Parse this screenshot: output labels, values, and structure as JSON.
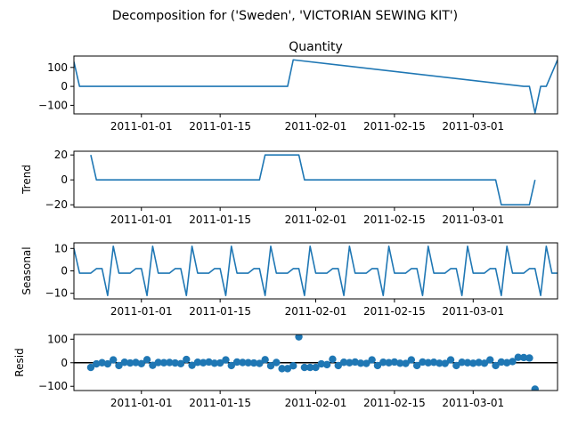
{
  "figure": {
    "suptitle": "Decomposition for ('Sweden', 'VICTORIAN SEWING KIT')"
  },
  "colors": {
    "series": "#1f77b4",
    "zero_line": "#000000"
  },
  "chart_data": [
    {
      "type": "line",
      "title": "Quantity",
      "ylabel": "",
      "xlim": [
        "2010-12-20",
        "2011-03-16"
      ],
      "ylim": [
        -145,
        160
      ],
      "yticks": [
        100,
        0,
        -100
      ],
      "ytick_labels": [
        "100",
        "0",
        "−100"
      ],
      "xticks": [
        "2011-01-01",
        "2011-01-15",
        "2011-02-01",
        "2011-02-15",
        "2011-03-01"
      ],
      "xtick_labels": [
        "2011-01-01",
        "2011-01-15",
        "2011-02-01",
        "2011-02-15",
        "2011-03-01"
      ],
      "series": [
        {
          "x": [
            "2010-12-20",
            "2010-12-21",
            "2011-01-26",
            "2011-01-27",
            "2011-01-28",
            "2011-03-10",
            "2011-03-11",
            "2011-03-12",
            "2011-03-13",
            "2011-03-14",
            "2011-03-16"
          ],
          "values": [
            130,
            0,
            0,
            0,
            140,
            0,
            0,
            -140,
            0,
            0,
            140
          ]
        }
      ]
    },
    {
      "type": "line",
      "title": "",
      "ylabel": "Trend",
      "xlim": [
        "2010-12-20",
        "2011-03-16"
      ],
      "ylim": [
        -22,
        23
      ],
      "yticks": [
        20,
        0,
        -20
      ],
      "ytick_labels": [
        "20",
        "0",
        "−20"
      ],
      "xticks": [
        "2011-01-01",
        "2011-01-15",
        "2011-02-01",
        "2011-02-15",
        "2011-03-01"
      ],
      "xtick_labels": [
        "2011-01-01",
        "2011-01-15",
        "2011-02-01",
        "2011-02-15",
        "2011-03-01"
      ],
      "series": [
        {
          "x": [
            "2010-12-23",
            "2010-12-24",
            "2011-01-22",
            "2011-01-23",
            "2011-01-29",
            "2011-01-30",
            "2011-03-05",
            "2011-03-06",
            "2011-03-11",
            "2011-03-12"
          ],
          "values": [
            20,
            0,
            0,
            20,
            20,
            0,
            0,
            -20,
            -20,
            0
          ]
        }
      ]
    },
    {
      "type": "line",
      "title": "",
      "ylabel": "Seasonal",
      "xlim": [
        "2010-12-20",
        "2011-03-16"
      ],
      "ylim": [
        -12.5,
        12.5
      ],
      "yticks": [
        10,
        0,
        -10
      ],
      "ytick_labels": [
        "10",
        "0",
        "−10"
      ],
      "xticks": [
        "2011-01-01",
        "2011-01-15",
        "2011-02-01",
        "2011-02-15",
        "2011-03-01"
      ],
      "xtick_labels": [
        "2011-01-01",
        "2011-01-15",
        "2011-02-01",
        "2011-02-15",
        "2011-03-01"
      ],
      "series": [
        {
          "x": [
            "2010-12-20",
            "2010-12-21",
            "2010-12-22",
            "2010-12-23",
            "2010-12-24",
            "2010-12-25",
            "2010-12-26",
            "2010-12-27",
            "2010-12-28",
            "2010-12-29",
            "2010-12-30",
            "2010-12-31",
            "2011-01-01",
            "2011-01-02",
            "2011-01-03",
            "2011-01-04",
            "2011-01-05",
            "2011-01-06",
            "2011-01-07",
            "2011-01-08",
            "2011-01-09",
            "2011-01-10",
            "2011-01-11",
            "2011-01-12",
            "2011-01-13",
            "2011-01-14",
            "2011-01-15",
            "2011-01-16",
            "2011-01-17",
            "2011-01-18",
            "2011-01-19",
            "2011-01-20",
            "2011-01-21",
            "2011-01-22",
            "2011-01-23",
            "2011-01-24",
            "2011-01-25",
            "2011-01-26",
            "2011-01-27",
            "2011-01-28",
            "2011-01-29",
            "2011-01-30",
            "2011-01-31",
            "2011-02-01",
            "2011-02-02",
            "2011-02-03",
            "2011-02-04",
            "2011-02-05",
            "2011-02-06",
            "2011-02-07",
            "2011-02-08",
            "2011-02-09",
            "2011-02-10",
            "2011-02-11",
            "2011-02-12",
            "2011-02-13",
            "2011-02-14",
            "2011-02-15",
            "2011-02-16",
            "2011-02-17",
            "2011-02-18",
            "2011-02-19",
            "2011-02-20",
            "2011-02-21",
            "2011-02-22",
            "2011-02-23",
            "2011-02-24",
            "2011-02-25",
            "2011-02-26",
            "2011-02-27",
            "2011-02-28",
            "2011-03-01",
            "2011-03-02",
            "2011-03-03",
            "2011-03-04",
            "2011-03-05",
            "2011-03-06",
            "2011-03-07",
            "2011-03-08",
            "2011-03-09",
            "2011-03-10",
            "2011-03-11",
            "2011-03-12",
            "2011-03-13",
            "2011-03-14",
            "2011-03-15",
            "2011-03-16"
          ],
          "values": [
            10,
            -1,
            -1,
            -1,
            1,
            1,
            -11,
            11,
            -1,
            -1,
            -1,
            1,
            1,
            -11,
            11,
            -1,
            -1,
            -1,
            1,
            1,
            -11,
            11,
            -1,
            -1,
            -1,
            1,
            1,
            -11,
            11,
            -1,
            -1,
            -1,
            1,
            1,
            -11,
            11,
            -1,
            -1,
            -1,
            1,
            1,
            -11,
            11,
            -1,
            -1,
            -1,
            1,
            1,
            -11,
            11,
            -1,
            -1,
            -1,
            1,
            1,
            -11,
            11,
            -1,
            -1,
            -1,
            1,
            1,
            -11,
            11,
            -1,
            -1,
            -1,
            1,
            1,
            -11,
            11,
            -1,
            -1,
            -1,
            1,
            1,
            -11,
            11,
            -1,
            -1,
            -1,
            1,
            1,
            -11,
            11,
            -1,
            -1
          ]
        }
      ]
    },
    {
      "type": "scatter",
      "title": "",
      "ylabel": "Resid",
      "xlim": [
        "2010-12-20",
        "2011-03-16"
      ],
      "ylim": [
        -118,
        120
      ],
      "yticks": [
        100,
        0,
        -100
      ],
      "ytick_labels": [
        "100",
        "0",
        "−100"
      ],
      "xticks": [
        "2011-01-01",
        "2011-01-15",
        "2011-02-01",
        "2011-02-15",
        "2011-03-01"
      ],
      "xtick_labels": [
        "2011-01-01",
        "2011-01-15",
        "2011-02-01",
        "2011-02-15",
        "2011-03-01"
      ],
      "zero_line": true,
      "series": [
        {
          "x": [
            "2010-12-23",
            "2010-12-24",
            "2010-12-25",
            "2010-12-26",
            "2010-12-27",
            "2010-12-28",
            "2010-12-29",
            "2010-12-30",
            "2010-12-31",
            "2011-01-01",
            "2011-01-02",
            "2011-01-03",
            "2011-01-04",
            "2011-01-05",
            "2011-01-06",
            "2011-01-07",
            "2011-01-08",
            "2011-01-09",
            "2011-01-10",
            "2011-01-11",
            "2011-01-12",
            "2011-01-13",
            "2011-01-14",
            "2011-01-15",
            "2011-01-16",
            "2011-01-17",
            "2011-01-18",
            "2011-01-19",
            "2011-01-20",
            "2011-01-21",
            "2011-01-22",
            "2011-01-23",
            "2011-01-24",
            "2011-01-25",
            "2011-01-26",
            "2011-01-27",
            "2011-01-28",
            "2011-01-29",
            "2011-01-30",
            "2011-01-31",
            "2011-02-01",
            "2011-02-02",
            "2011-02-03",
            "2011-02-04",
            "2011-02-05",
            "2011-02-06",
            "2011-02-07",
            "2011-02-08",
            "2011-02-09",
            "2011-02-10",
            "2011-02-11",
            "2011-02-12",
            "2011-02-13",
            "2011-02-14",
            "2011-02-15",
            "2011-02-16",
            "2011-02-17",
            "2011-02-18",
            "2011-02-19",
            "2011-02-20",
            "2011-02-21",
            "2011-02-22",
            "2011-02-23",
            "2011-02-24",
            "2011-02-25",
            "2011-02-26",
            "2011-02-27",
            "2011-02-28",
            "2011-03-01",
            "2011-03-02",
            "2011-03-03",
            "2011-03-04",
            "2011-03-05",
            "2011-03-06",
            "2011-03-07",
            "2011-03-08",
            "2011-03-09",
            "2011-03-10",
            "2011-03-11",
            "2011-03-12"
          ],
          "values": [
            -20,
            -5,
            0,
            -5,
            12,
            -12,
            2,
            -1,
            1,
            -4,
            13,
            -11,
            1,
            0,
            1,
            -1,
            -4,
            14,
            -11,
            2,
            0,
            3,
            -2,
            -1,
            12,
            -12,
            3,
            1,
            0,
            -1,
            -3,
            13,
            -13,
            1,
            -25,
            -25,
            -13,
            110,
            -20,
            -20,
            -20,
            -5,
            -8,
            15,
            -12,
            2,
            0,
            3,
            -2,
            -3,
            12,
            -12,
            2,
            0,
            3,
            -2,
            -3,
            12,
            -12,
            3,
            0,
            2,
            -2,
            -3,
            12,
            -12,
            2,
            0,
            -2,
            1,
            -2,
            12,
            -12,
            3,
            0,
            5,
            23,
            22,
            20,
            -112
          ]
        }
      ]
    }
  ]
}
